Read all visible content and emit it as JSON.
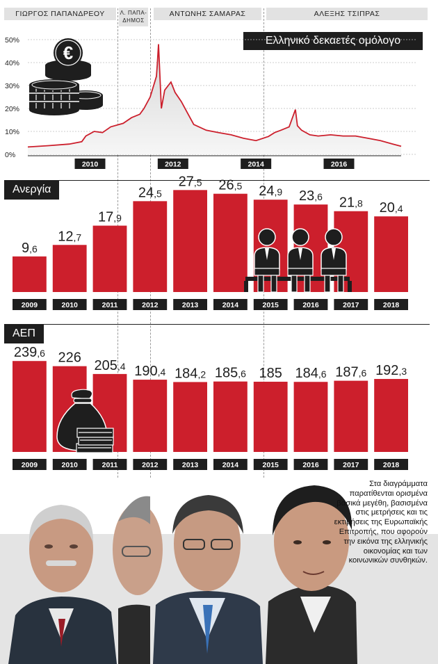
{
  "eras": [
    {
      "label": "ΓΙΩΡΓΟΣ ΠΑΠΑΝΔΡΕΟΥ"
    },
    {
      "label": "Λ. ΠΑΠΑ-",
      "label2": "ΔΗΜΟΣ"
    },
    {
      "label": "ΑΝΤΩΝΗΣ ΣΑΜΑΡΑΣ"
    },
    {
      "label": "ΑΛΕΞΗΣ ΤΣΙΠΡΑΣ"
    }
  ],
  "colors": {
    "accent": "#cc1f2c",
    "dark": "#1e1e1e",
    "era_bg": "#e2e2e2"
  },
  "chart_data": [
    {
      "type": "line",
      "title": "Ελληνικό δεκαετές ομόλογο",
      "yticks": [
        "50%",
        "40%",
        "30%",
        "20%",
        "10%",
        "0%"
      ],
      "ylim": [
        0,
        50
      ],
      "xticks": [
        "2010",
        "2012",
        "2014",
        "2016"
      ],
      "x": [
        2009.0,
        2009.5,
        2010.0,
        2010.3,
        2010.4,
        2010.6,
        2010.8,
        2011.0,
        2011.3,
        2011.5,
        2011.7,
        2011.8,
        2011.95,
        2012.1,
        2012.12,
        2012.15,
        2012.22,
        2012.3,
        2012.45,
        2012.55,
        2012.7,
        2012.85,
        2013.0,
        2013.3,
        2013.6,
        2013.9,
        2014.2,
        2014.5,
        2014.8,
        2014.95,
        2015.1,
        2015.3,
        2015.45,
        2015.5,
        2015.6,
        2015.8,
        2016.0,
        2016.3,
        2016.6,
        2016.9,
        2017.2,
        2017.5,
        2017.8,
        2018.0
      ],
      "values": [
        3.2,
        3.8,
        4.5,
        5.5,
        8.0,
        10.0,
        9.5,
        12.0,
        13.5,
        16.0,
        17.5,
        20.0,
        25.0,
        34.0,
        39.0,
        48.0,
        20.0,
        28.0,
        31.5,
        27.0,
        23.0,
        18.0,
        13.0,
        10.5,
        9.5,
        8.5,
        7.0,
        6.0,
        7.8,
        9.5,
        10.5,
        12.0,
        19.5,
        12.5,
        10.5,
        8.5,
        8.0,
        8.5,
        8.0,
        8.0,
        7.0,
        6.0,
        4.5,
        3.5
      ]
    },
    {
      "type": "bar",
      "title": "Ανεργία",
      "categories": [
        "2009",
        "2010",
        "2011",
        "2012",
        "2013",
        "2014",
        "2015",
        "2016",
        "2017",
        "2018"
      ],
      "values": [
        9.6,
        12.7,
        17.9,
        24.5,
        27.5,
        26.5,
        24.9,
        23.6,
        21.8,
        20.4
      ],
      "labels": [
        {
          "int": "9",
          "dec": ",6"
        },
        {
          "int": "12",
          "dec": ",7"
        },
        {
          "int": "17",
          "dec": ",9"
        },
        {
          "int": "24",
          "dec": ",5"
        },
        {
          "int": "27",
          "dec": ",5"
        },
        {
          "int": "26",
          "dec": ",5"
        },
        {
          "int": "24",
          "dec": ",9"
        },
        {
          "int": "23",
          "dec": ",6"
        },
        {
          "int": "21",
          "dec": ",8"
        },
        {
          "int": "20",
          "dec": ",4"
        }
      ],
      "ylim": [
        0,
        30
      ]
    },
    {
      "type": "bar",
      "title": "ΑΕΠ",
      "categories": [
        "2009",
        "2010",
        "2011",
        "2012",
        "2013",
        "2014",
        "2015",
        "2016",
        "2017",
        "2018"
      ],
      "values": [
        239.6,
        226,
        205.4,
        190.4,
        184.2,
        185.6,
        185,
        184.6,
        187.6,
        192.3
      ],
      "labels": [
        {
          "int": "239",
          "dec": ",6"
        },
        {
          "int": "226",
          "dec": ""
        },
        {
          "int": "205",
          "dec": ",4"
        },
        {
          "int": "190",
          "dec": ",4"
        },
        {
          "int": "184",
          "dec": ",2"
        },
        {
          "int": "185",
          "dec": ",6"
        },
        {
          "int": "185",
          "dec": ""
        },
        {
          "int": "184",
          "dec": ",6"
        },
        {
          "int": "187",
          "dec": ",6"
        },
        {
          "int": "192",
          "dec": ",3"
        }
      ],
      "ylim": [
        0,
        240
      ]
    }
  ],
  "side_text": "Στα διαγράμματα παρατίθενται ορισμένα βασικά μεγέθη, βασισμένα στις μετρήσεις και τις εκτιμήσεις της Ευρωπαϊκής Επιτροπής, που αφορούν την εικόνα της ελληνικής οικονομίας και των κοινωνικών συνθηκών."
}
